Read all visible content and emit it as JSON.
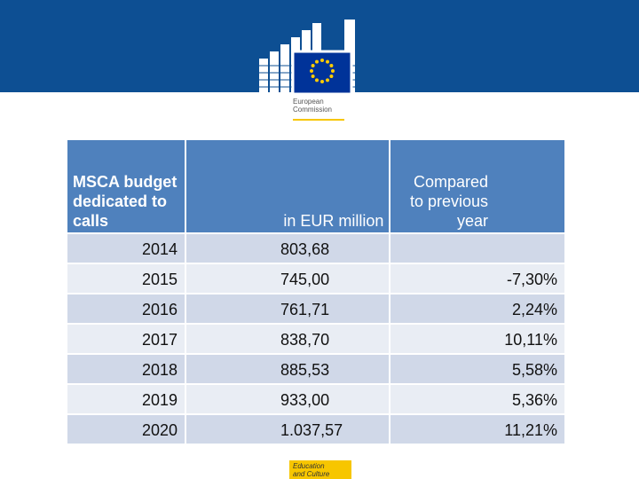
{
  "header": {
    "logo_line1": "European",
    "logo_line2": "Commission"
  },
  "table": {
    "columns": [
      "MSCA budget dedicated to calls",
      "in EUR million",
      "Compared to previous year"
    ],
    "rows": [
      {
        "year": "2014",
        "amount": "803,68",
        "change": ""
      },
      {
        "year": "2015",
        "amount": "745,00",
        "change": "-7,30%"
      },
      {
        "year": "2016",
        "amount": "761,71",
        "change": "2,24%"
      },
      {
        "year": "2017",
        "amount": "838,70",
        "change": "10,11%"
      },
      {
        "year": "2018",
        "amount": "885,53",
        "change": "5,58%"
      },
      {
        "year": "2019",
        "amount": "933,00",
        "change": "5,36%"
      },
      {
        "year": "2020",
        "amount": "1.037,57",
        "change": "11,21%"
      }
    ]
  },
  "footer": {
    "line1": "Education",
    "line2": "and Culture"
  },
  "colors": {
    "band": "#0d4f93",
    "header_fill": "#4f81bd",
    "row_fill_a": "#d0d8e8",
    "row_fill_b": "#e9edf4",
    "footer_yellow": "#f7c600"
  }
}
